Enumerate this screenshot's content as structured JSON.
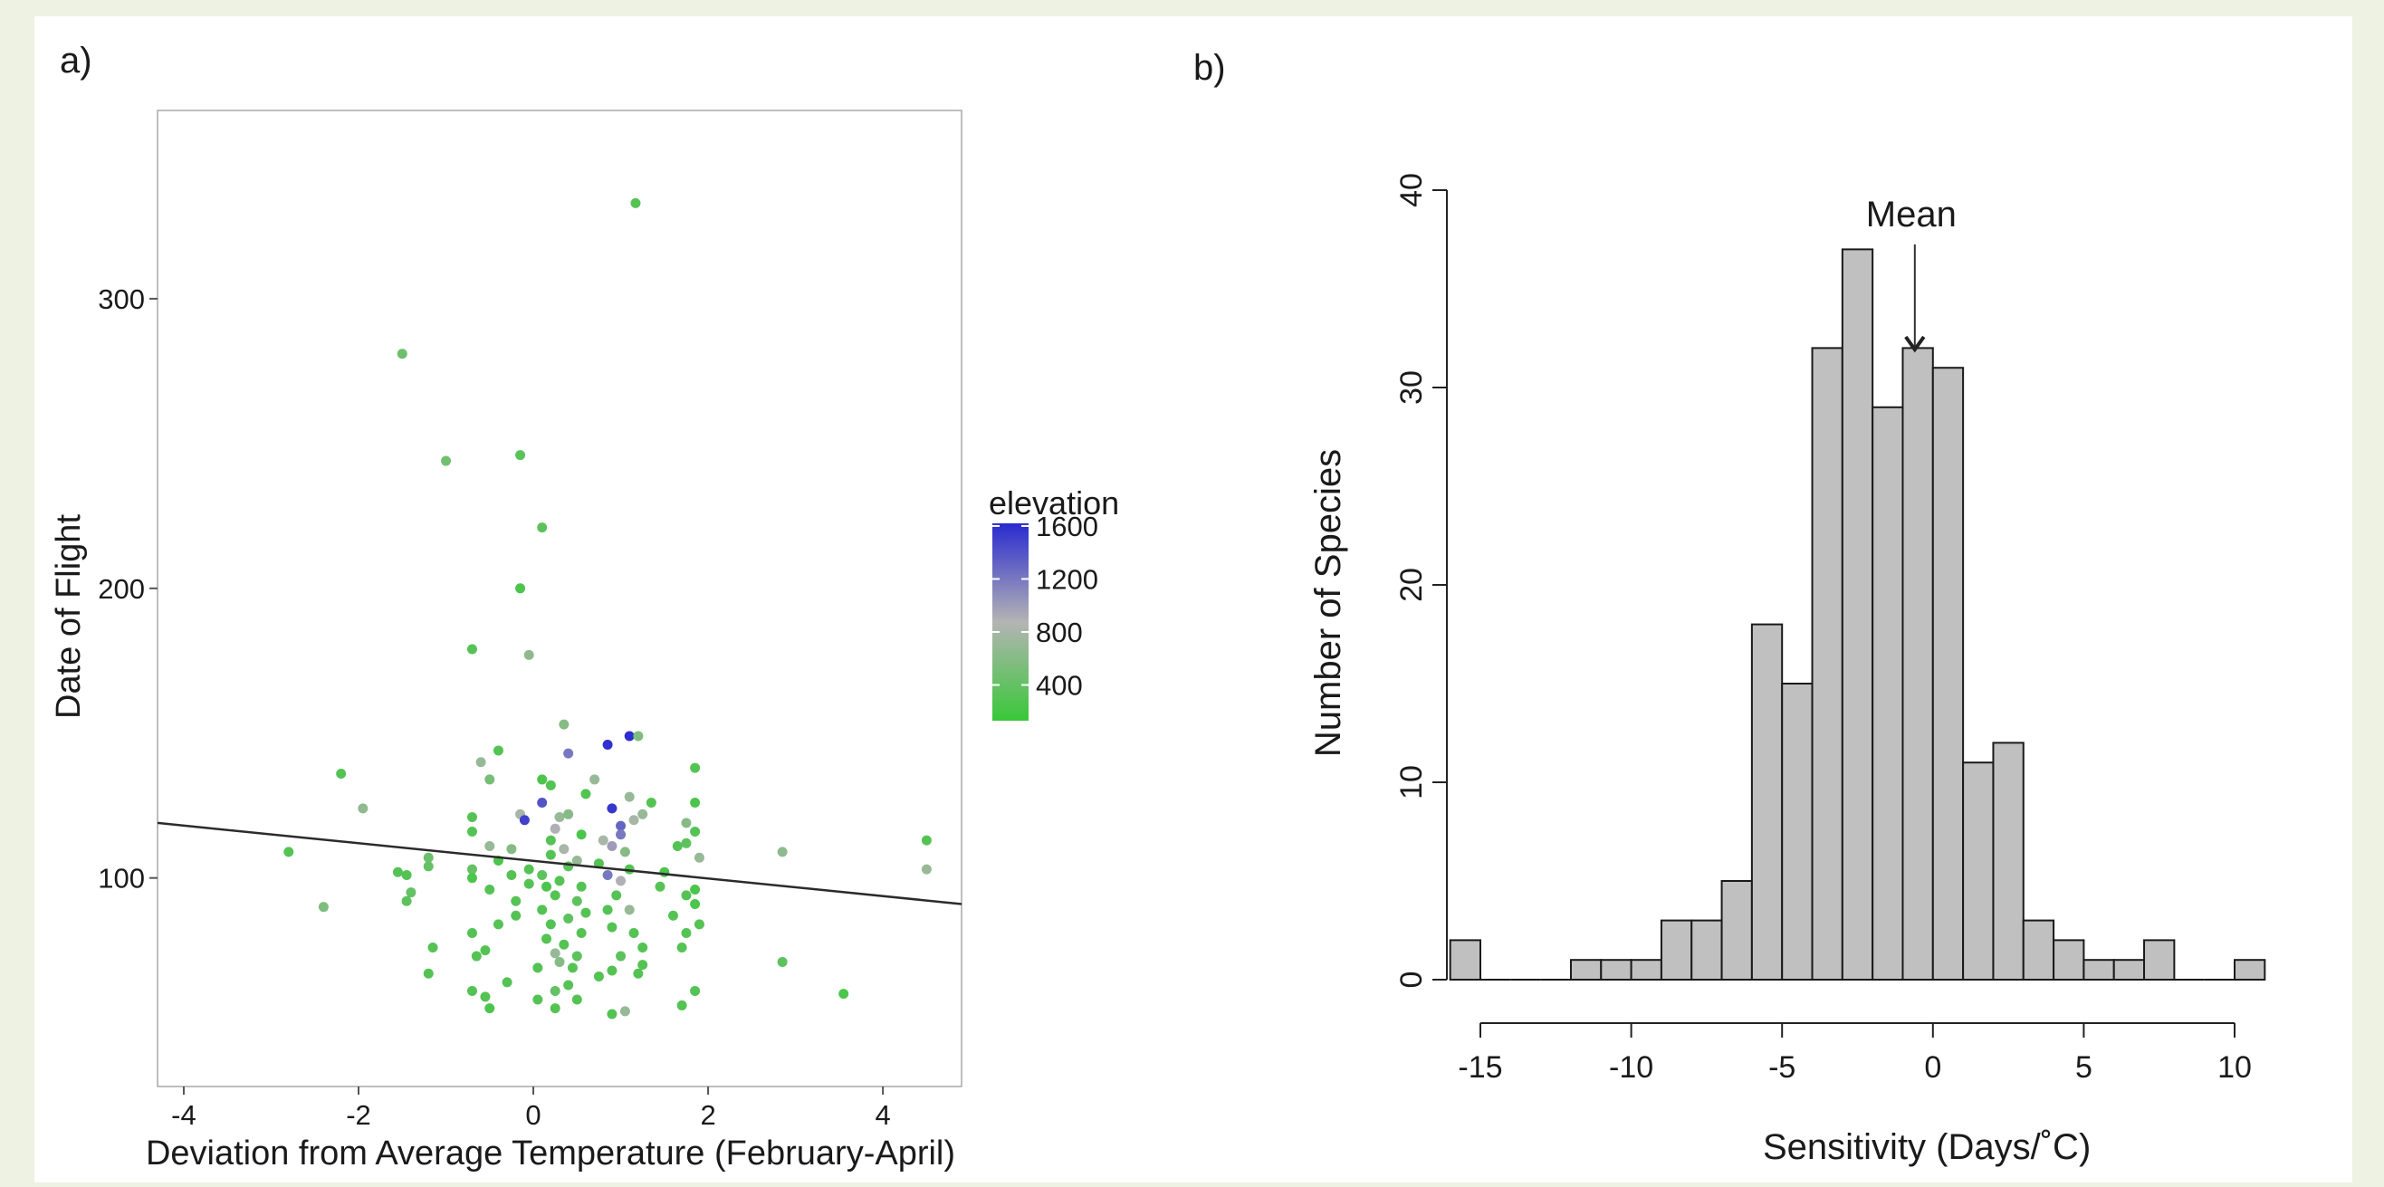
{
  "panels": {
    "a_label": "a)",
    "b_label": "b)"
  },
  "chart_data": [
    {
      "type": "scatter",
      "title": "",
      "xlabel": "Deviation from Average Temperature (February-April)",
      "ylabel": "Date of Flight",
      "xlim": [
        -4.3,
        4.9
      ],
      "ylim": [
        28,
        365
      ],
      "xticks": [
        -4,
        -2,
        0,
        2,
        4
      ],
      "yticks": [
        100,
        200,
        300
      ],
      "grid": false,
      "legend": {
        "title": "elevation",
        "position": "right",
        "ticks": [
          1600,
          1200,
          800,
          400
        ],
        "range": [
          130,
          1620
        ],
        "colors": {
          "low": "#38c838",
          "mid": "#b4b4b4",
          "high": "#2a2ad0"
        }
      },
      "trend_line": {
        "x": [
          -4.3,
          4.9
        ],
        "y": [
          119,
          91
        ],
        "color": "#2b2b2b"
      },
      "points": [
        {
          "x": 1.17,
          "y": 333,
          "e": 300
        },
        {
          "x": -1.5,
          "y": 281,
          "e": 450
        },
        {
          "x": -1.0,
          "y": 244,
          "e": 480
        },
        {
          "x": -0.15,
          "y": 246,
          "e": 330
        },
        {
          "x": 0.1,
          "y": 221,
          "e": 350
        },
        {
          "x": -0.15,
          "y": 200,
          "e": 250
        },
        {
          "x": -0.7,
          "y": 179,
          "e": 300
        },
        {
          "x": -0.05,
          "y": 177,
          "e": 650
        },
        {
          "x": 0.35,
          "y": 153,
          "e": 600
        },
        {
          "x": 1.1,
          "y": 149,
          "e": 1600
        },
        {
          "x": 0.85,
          "y": 146,
          "e": 1580
        },
        {
          "x": 1.2,
          "y": 149,
          "e": 550
        },
        {
          "x": 0.4,
          "y": 143,
          "e": 1200
        },
        {
          "x": -0.4,
          "y": 144,
          "e": 300
        },
        {
          "x": -0.6,
          "y": 140,
          "e": 700
        },
        {
          "x": 1.85,
          "y": 138,
          "e": 300
        },
        {
          "x": -2.2,
          "y": 136,
          "e": 300
        },
        {
          "x": -0.5,
          "y": 134,
          "e": 500
        },
        {
          "x": 0.1,
          "y": 134,
          "e": 250
        },
        {
          "x": 0.7,
          "y": 134,
          "e": 700
        },
        {
          "x": 0.2,
          "y": 132,
          "e": 280
        },
        {
          "x": 0.6,
          "y": 129,
          "e": 280
        },
        {
          "x": 1.1,
          "y": 128,
          "e": 700
        },
        {
          "x": 1.35,
          "y": 126,
          "e": 300
        },
        {
          "x": 0.1,
          "y": 126,
          "e": 1400
        },
        {
          "x": 0.9,
          "y": 124,
          "e": 1550
        },
        {
          "x": 1.85,
          "y": 126,
          "e": 250
        },
        {
          "x": -1.95,
          "y": 124,
          "e": 650
        },
        {
          "x": -0.15,
          "y": 122,
          "e": 800
        },
        {
          "x": -0.1,
          "y": 120,
          "e": 1500
        },
        {
          "x": 0.3,
          "y": 121,
          "e": 700
        },
        {
          "x": 0.4,
          "y": 122,
          "e": 600
        },
        {
          "x": 1.0,
          "y": 118,
          "e": 1300
        },
        {
          "x": 1.15,
          "y": 120,
          "e": 800
        },
        {
          "x": 1.25,
          "y": 122,
          "e": 700
        },
        {
          "x": -0.7,
          "y": 121,
          "e": 300
        },
        {
          "x": 1.75,
          "y": 119,
          "e": 600
        },
        {
          "x": 0.25,
          "y": 117,
          "e": 900
        },
        {
          "x": 1.0,
          "y": 115,
          "e": 1200
        },
        {
          "x": -0.7,
          "y": 116,
          "e": 300
        },
        {
          "x": 0.55,
          "y": 115,
          "e": 250
        },
        {
          "x": 1.85,
          "y": 116,
          "e": 300
        },
        {
          "x": 0.2,
          "y": 113,
          "e": 300
        },
        {
          "x": 0.8,
          "y": 113,
          "e": 800
        },
        {
          "x": 1.75,
          "y": 112,
          "e": 350
        },
        {
          "x": -0.5,
          "y": 111,
          "e": 700
        },
        {
          "x": 0.9,
          "y": 111,
          "e": 1000
        },
        {
          "x": 4.5,
          "y": 113,
          "e": 300
        },
        {
          "x": -0.25,
          "y": 110,
          "e": 600
        },
        {
          "x": 0.35,
          "y": 110,
          "e": 800
        },
        {
          "x": 1.65,
          "y": 111,
          "e": 300
        },
        {
          "x": -2.8,
          "y": 109,
          "e": 300
        },
        {
          "x": 0.2,
          "y": 108,
          "e": 300
        },
        {
          "x": 1.05,
          "y": 109,
          "e": 600
        },
        {
          "x": 2.85,
          "y": 109,
          "e": 650
        },
        {
          "x": -1.2,
          "y": 107,
          "e": 450
        },
        {
          "x": -0.4,
          "y": 106,
          "e": 250
        },
        {
          "x": 0.5,
          "y": 106,
          "e": 700
        },
        {
          "x": 1.9,
          "y": 107,
          "e": 700
        },
        {
          "x": -1.2,
          "y": 104,
          "e": 400
        },
        {
          "x": 0.75,
          "y": 105,
          "e": 300
        },
        {
          "x": -0.7,
          "y": 103,
          "e": 400
        },
        {
          "x": -0.05,
          "y": 103,
          "e": 300
        },
        {
          "x": 0.4,
          "y": 104,
          "e": 350
        },
        {
          "x": 1.1,
          "y": 103,
          "e": 300
        },
        {
          "x": 4.5,
          "y": 103,
          "e": 700
        },
        {
          "x": -1.55,
          "y": 102,
          "e": 300
        },
        {
          "x": -0.25,
          "y": 101,
          "e": 300
        },
        {
          "x": 0.1,
          "y": 101,
          "e": 350
        },
        {
          "x": 0.85,
          "y": 101,
          "e": 1200
        },
        {
          "x": 1.5,
          "y": 102,
          "e": 250
        },
        {
          "x": -1.45,
          "y": 101,
          "e": 300
        },
        {
          "x": -0.7,
          "y": 100,
          "e": 250
        },
        {
          "x": 0.3,
          "y": 99,
          "e": 300
        },
        {
          "x": 1.0,
          "y": 99,
          "e": 900
        },
        {
          "x": 0.15,
          "y": 97,
          "e": 250
        },
        {
          "x": 0.55,
          "y": 97,
          "e": 300
        },
        {
          "x": 1.45,
          "y": 97,
          "e": 300
        },
        {
          "x": -0.5,
          "y": 96,
          "e": 300
        },
        {
          "x": 1.85,
          "y": 96,
          "e": 250
        },
        {
          "x": -1.4,
          "y": 95,
          "e": 400
        },
        {
          "x": 0.25,
          "y": 94,
          "e": 300
        },
        {
          "x": 0.95,
          "y": 94,
          "e": 300
        },
        {
          "x": 1.75,
          "y": 94,
          "e": 300
        },
        {
          "x": -1.45,
          "y": 92,
          "e": 350
        },
        {
          "x": -0.2,
          "y": 92,
          "e": 300
        },
        {
          "x": 0.5,
          "y": 92,
          "e": 350
        },
        {
          "x": 1.85,
          "y": 91,
          "e": 250
        },
        {
          "x": -2.4,
          "y": 90,
          "e": 550
        },
        {
          "x": 0.1,
          "y": 89,
          "e": 300
        },
        {
          "x": 0.85,
          "y": 89,
          "e": 300
        },
        {
          "x": 1.1,
          "y": 89,
          "e": 700
        },
        {
          "x": -0.2,
          "y": 87,
          "e": 300
        },
        {
          "x": 0.4,
          "y": 86,
          "e": 350
        },
        {
          "x": 1.6,
          "y": 87,
          "e": 300
        },
        {
          "x": 0.2,
          "y": 84,
          "e": 300
        },
        {
          "x": 1.9,
          "y": 84,
          "e": 300
        },
        {
          "x": -0.4,
          "y": 84,
          "e": 300
        },
        {
          "x": 0.9,
          "y": 83,
          "e": 300
        },
        {
          "x": -0.7,
          "y": 81,
          "e": 300
        },
        {
          "x": 0.55,
          "y": 81,
          "e": 300
        },
        {
          "x": 1.15,
          "y": 81,
          "e": 300
        },
        {
          "x": 1.75,
          "y": 81,
          "e": 300
        },
        {
          "x": 0.15,
          "y": 79,
          "e": 280
        },
        {
          "x": 0.35,
          "y": 77,
          "e": 300
        },
        {
          "x": -1.15,
          "y": 76,
          "e": 300
        },
        {
          "x": 1.7,
          "y": 76,
          "e": 300
        },
        {
          "x": -0.55,
          "y": 75,
          "e": 300
        },
        {
          "x": 0.25,
          "y": 74,
          "e": 700
        },
        {
          "x": -0.65,
          "y": 73,
          "e": 300
        },
        {
          "x": 0.5,
          "y": 73,
          "e": 350
        },
        {
          "x": 1.0,
          "y": 73,
          "e": 350
        },
        {
          "x": 0.3,
          "y": 71,
          "e": 600
        },
        {
          "x": 2.85,
          "y": 71,
          "e": 350
        },
        {
          "x": 1.25,
          "y": 70,
          "e": 300
        },
        {
          "x": 0.05,
          "y": 69,
          "e": 300
        },
        {
          "x": 0.9,
          "y": 68,
          "e": 300
        },
        {
          "x": -1.2,
          "y": 67,
          "e": 300
        },
        {
          "x": 1.2,
          "y": 67,
          "e": 300
        },
        {
          "x": 0.75,
          "y": 66,
          "e": 300
        },
        {
          "x": -0.3,
          "y": 64,
          "e": 300
        },
        {
          "x": 0.4,
          "y": 63,
          "e": 300
        },
        {
          "x": -0.7,
          "y": 61,
          "e": 300
        },
        {
          "x": 0.25,
          "y": 61,
          "e": 400
        },
        {
          "x": 1.85,
          "y": 61,
          "e": 300
        },
        {
          "x": 3.55,
          "y": 60,
          "e": 250
        },
        {
          "x": -0.55,
          "y": 59,
          "e": 300
        },
        {
          "x": 0.05,
          "y": 58,
          "e": 300
        },
        {
          "x": 0.5,
          "y": 58,
          "e": 300
        },
        {
          "x": 1.7,
          "y": 56,
          "e": 300
        },
        {
          "x": -0.5,
          "y": 55,
          "e": 250
        },
        {
          "x": 0.25,
          "y": 55,
          "e": 300
        },
        {
          "x": 1.05,
          "y": 54,
          "e": 700
        },
        {
          "x": 0.9,
          "y": 53,
          "e": 300
        },
        {
          "x": 1.25,
          "y": 76,
          "e": 300
        },
        {
          "x": 0.45,
          "y": 69,
          "e": 300
        },
        {
          "x": -0.05,
          "y": 98,
          "e": 300
        },
        {
          "x": 0.6,
          "y": 88,
          "e": 300
        }
      ]
    },
    {
      "type": "bar",
      "title": "",
      "xlabel": "Sensitivity (Days/˚C)",
      "ylabel": "Number of Species",
      "xlim": [
        -15.5,
        10.5
      ],
      "ylim": [
        0,
        40
      ],
      "xticks": [
        -15,
        -10,
        -5,
        0,
        5,
        10
      ],
      "yticks": [
        0,
        10,
        20,
        30,
        40
      ],
      "bin_width": 1,
      "bin_starts": [
        -16,
        -15,
        -14,
        -13,
        -12,
        -11,
        -10,
        -9,
        -8,
        -7,
        -6,
        -5,
        -4,
        -3,
        -2,
        -1,
        0,
        1,
        2,
        3,
        4,
        5,
        6,
        7,
        8,
        9,
        10
      ],
      "values": [
        2,
        0,
        0,
        0,
        1,
        1,
        1,
        3,
        3,
        5,
        18,
        15,
        32,
        37,
        29,
        32,
        31,
        11,
        12,
        3,
        2,
        1,
        1,
        2,
        0,
        0,
        1
      ],
      "bar_color": "#c0c0c0",
      "annotation": {
        "text": "Mean",
        "x": -0.6,
        "y": 32
      }
    }
  ]
}
